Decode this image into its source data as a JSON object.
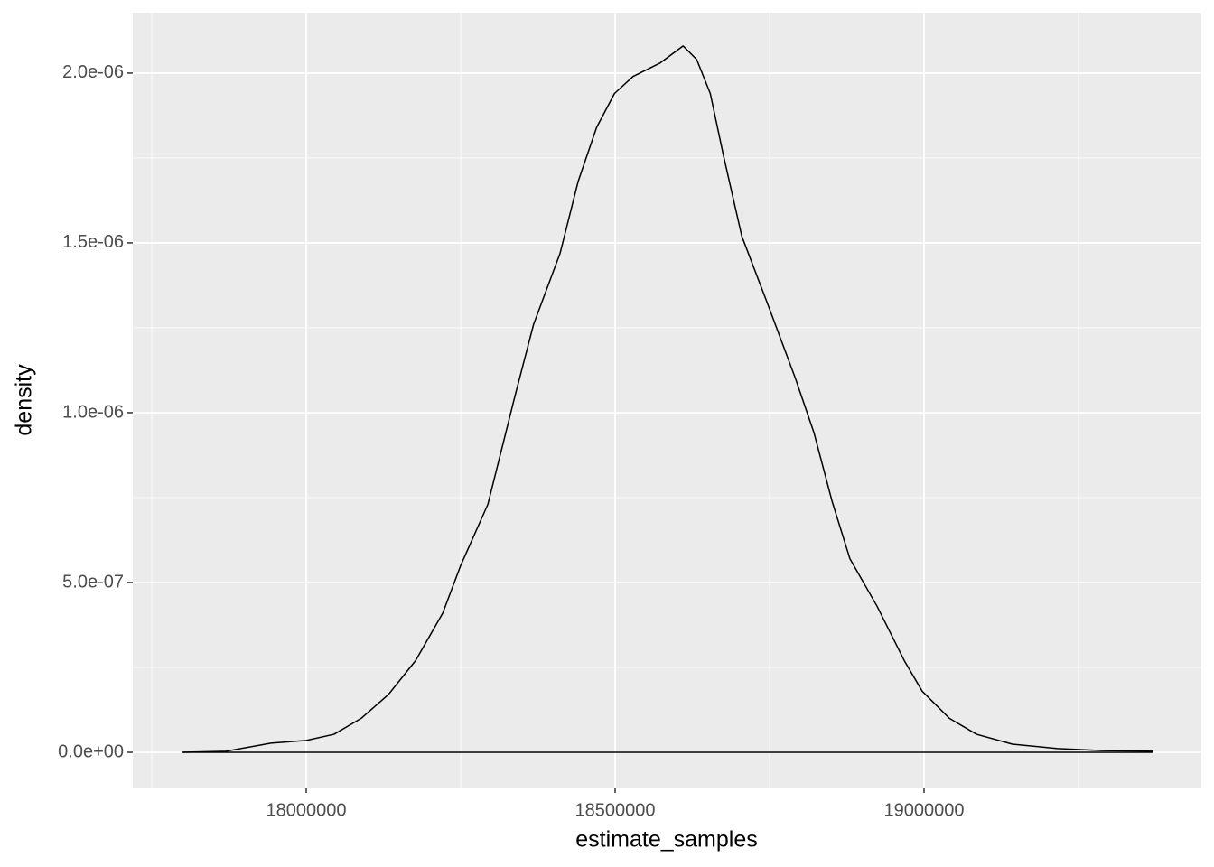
{
  "chart_data": {
    "type": "density",
    "x_label": "estimate_samples",
    "y_label": "density",
    "x": [
      17800000,
      17870000,
      17943000,
      18000000,
      18045000,
      18089000,
      18133000,
      18177000,
      18221000,
      18250000,
      18294000,
      18338000,
      18368000,
      18411000,
      18440000,
      18470000,
      18499000,
      18529000,
      18573000,
      18610000,
      18632000,
      18654000,
      18675000,
      18705000,
      18749000,
      18792000,
      18822000,
      18851000,
      18880000,
      18924000,
      18968000,
      18997000,
      19041000,
      19085000,
      19143000,
      19216000,
      19289000,
      19370000
    ],
    "values": [
      0,
      3e-09,
      2.7e-08,
      3.5e-08,
      5.3e-08,
      1e-07,
      1.7e-07,
      2.7e-07,
      4.1e-07,
      5.5e-07,
      7.3e-07,
      1.05e-06,
      1.26e-06,
      1.47e-06,
      1.68e-06,
      1.84e-06,
      1.94e-06,
      1.99e-06,
      2.03e-06,
      2.08e-06,
      2.04e-06,
      1.94e-06,
      1.76e-06,
      1.52e-06,
      1.31e-06,
      1.1e-06,
      9.4e-07,
      7.4e-07,
      5.7e-07,
      4.3e-07,
      2.7e-07,
      1.8e-07,
      1e-07,
      5.3e-08,
      2.4e-08,
      1.1e-08,
      5e-09,
      3e-09
    ],
    "color": "#000000",
    "xlim": [
      17719298,
      19448830
    ],
    "ylim": [
      -1.037e-07,
      2.178e-06
    ],
    "xticks": [
      18000000,
      18500000,
      19000000
    ],
    "yticks": [
      {
        "value": 0,
        "label": "0.0e+00"
      },
      {
        "value": 5e-07,
        "label": "5.0e-07"
      },
      {
        "value": 1e-06,
        "label": "1.0e-06"
      },
      {
        "value": 1.5e-06,
        "label": "1.5e-06"
      },
      {
        "value": 2e-06,
        "label": "2.0e-06"
      }
    ],
    "x_minor_grid": [
      17750000,
      18250000,
      18750000,
      19250000
    ],
    "y_minor_grid": [
      2.5e-07,
      7.5e-07,
      1.25e-06,
      1.75e-06
    ],
    "grid": true
  }
}
